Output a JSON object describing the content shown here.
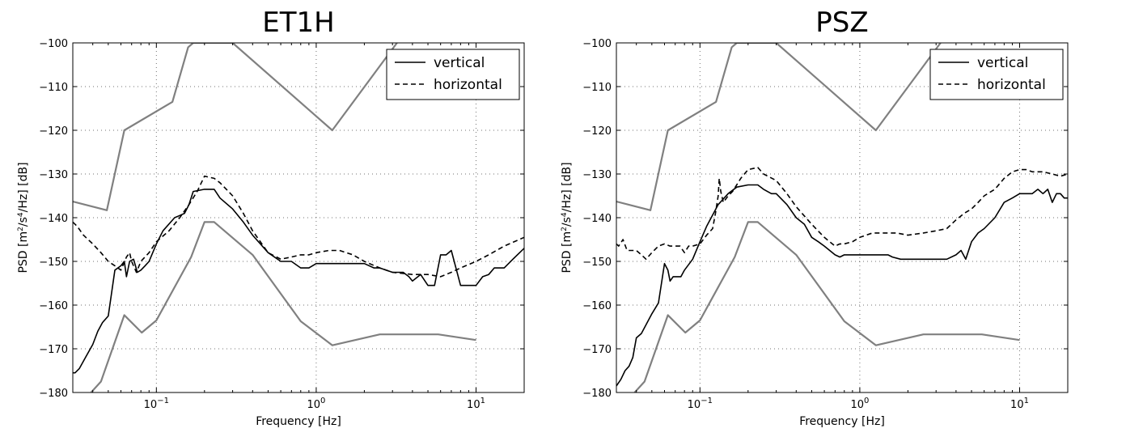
{
  "chart_data": [
    {
      "type": "line",
      "title": "ET1H",
      "xlabel": "Frequency [Hz]",
      "ylabel": "PSD [m$^2$/s$^4$/Hz] [dB]",
      "ylabel_parts": {
        "pre": "PSD [m",
        "sup1": "2",
        "mid": "/s",
        "sup2": "4",
        "post": "/Hz] [dB]"
      },
      "xscale": "log",
      "xlim": [
        0.03,
        20
      ],
      "ylim": [
        -180,
        -100
      ],
      "xticks": [
        {
          "value": 0.1,
          "base": "10",
          "exp": "−1"
        },
        {
          "value": 1,
          "base": "10",
          "exp": "0"
        },
        {
          "value": 10,
          "base": "10",
          "exp": "1"
        }
      ],
      "yticks": [
        -180,
        -170,
        -160,
        -150,
        -140,
        -130,
        -120,
        -110,
        -100
      ],
      "ytick_labels": [
        "−180",
        "−170",
        "−160",
        "−150",
        "−140",
        "−130",
        "−120",
        "−110",
        "−100"
      ],
      "grid": true,
      "legend": {
        "position": "top-right",
        "entries": [
          {
            "label": "vertical",
            "style": "solid"
          },
          {
            "label": "horizontal",
            "style": "dashed"
          }
        ]
      },
      "series": [
        {
          "name": "vertical",
          "color": "#000000",
          "style": "solid",
          "x": [
            0.03,
            0.031,
            0.033,
            0.036,
            0.04,
            0.043,
            0.046,
            0.05,
            0.055,
            0.06,
            0.063,
            0.065,
            0.068,
            0.072,
            0.076,
            0.08,
            0.085,
            0.09,
            0.1,
            0.11,
            0.13,
            0.14,
            0.15,
            0.16,
            0.17,
            0.2,
            0.23,
            0.25,
            0.3,
            0.35,
            0.4,
            0.5,
            0.6,
            0.7,
            0.8,
            0.9,
            1.0,
            1.5,
            2.0,
            2.3,
            2.5,
            3.0,
            3.5,
            3.8,
            4.0,
            4.5,
            5.0,
            5.5,
            6.0,
            6.5,
            7.0,
            8.0,
            9.0,
            10.0,
            11.0,
            12.0,
            13.0,
            15.0,
            17.0,
            20.0
          ],
          "y": [
            -175.5,
            -175.5,
            -174.5,
            -172,
            -169,
            -166,
            -164,
            -162.5,
            -152,
            -151,
            -150,
            -153.5,
            -150,
            -149.5,
            -152.5,
            -152,
            -151,
            -150,
            -146,
            -143,
            -140,
            -139.5,
            -139,
            -137,
            -134,
            -133.5,
            -133.5,
            -135.5,
            -138,
            -141,
            -144,
            -148,
            -150,
            -150,
            -151.5,
            -151.5,
            -150.5,
            -150.5,
            -150.5,
            -151.5,
            -151.5,
            -152.5,
            -152.5,
            -153.5,
            -154.5,
            -153,
            -155.5,
            -155.5,
            -148.5,
            -148.5,
            -147.5,
            -155.5,
            -155.5,
            -155.5,
            -153.5,
            -153,
            -151.5,
            -151.5,
            -149.5,
            -147
          ]
        },
        {
          "name": "horizontal",
          "color": "#000000",
          "style": "dashed",
          "x": [
            0.03,
            0.032,
            0.035,
            0.04,
            0.045,
            0.05,
            0.055,
            0.06,
            0.065,
            0.068,
            0.07,
            0.075,
            0.08,
            0.09,
            0.1,
            0.12,
            0.14,
            0.16,
            0.18,
            0.2,
            0.23,
            0.25,
            0.3,
            0.35,
            0.4,
            0.5,
            0.6,
            0.7,
            0.8,
            0.9,
            1.0,
            1.2,
            1.4,
            1.7,
            2.0,
            2.5,
            3.0,
            4.0,
            5.0,
            6.0,
            7.0,
            8.0,
            10.0,
            12.0,
            15.0,
            20.0
          ],
          "y": [
            -141,
            -142,
            -144,
            -146,
            -148,
            -150,
            -151,
            -152,
            -149,
            -148,
            -150,
            -152.5,
            -150,
            -148,
            -145.5,
            -143,
            -140,
            -137,
            -134,
            -130.5,
            -131,
            -132,
            -135,
            -139,
            -143,
            -148,
            -149.5,
            -149,
            -148.5,
            -148.5,
            -148,
            -147.5,
            -147.5,
            -148.5,
            -150,
            -151.5,
            -152.5,
            -153,
            -153,
            -153.5,
            -152.5,
            -151.5,
            -150,
            -148.5,
            -146.5,
            -144.5
          ]
        },
        {
          "name": "",
          "color": "#808080",
          "style": "solid",
          "role": "upper-noise-model",
          "x": [
            0.03,
            0.049,
            0.063,
            0.126,
            0.158,
            0.17,
            0.3,
            1.26,
            3.2
          ],
          "y": [
            -136.3,
            -138.3,
            -120,
            -113.5,
            -101,
            -100,
            -100,
            -120,
            -100
          ]
        },
        {
          "name": "",
          "color": "#808080",
          "style": "solid",
          "role": "lower-noise-model",
          "x": [
            0.039,
            0.045,
            0.063,
            0.081,
            0.1,
            0.165,
            0.2,
            0.23,
            0.4,
            0.8,
            1.26,
            2.5,
            5.8,
            10.0
          ],
          "y": [
            -180,
            -177.5,
            -162.3,
            -166.3,
            -163.5,
            -149,
            -141,
            -141,
            -148.5,
            -163.7,
            -169.2,
            -166.7,
            -166.7,
            -168
          ]
        }
      ]
    },
    {
      "type": "line",
      "title": "PSZ",
      "xlabel": "Frequency [Hz]",
      "ylabel": "PSD [m$^2$/s$^4$/Hz] [dB]",
      "ylabel_parts": {
        "pre": "PSD [m",
        "sup1": "2",
        "mid": "/s",
        "sup2": "4",
        "post": "/Hz] [dB]"
      },
      "xscale": "log",
      "xlim": [
        0.03,
        20
      ],
      "ylim": [
        -180,
        -100
      ],
      "xticks": [
        {
          "value": 0.1,
          "base": "10",
          "exp": "−1"
        },
        {
          "value": 1,
          "base": "10",
          "exp": "0"
        },
        {
          "value": 10,
          "base": "10",
          "exp": "1"
        }
      ],
      "yticks": [
        -180,
        -170,
        -160,
        -150,
        -140,
        -130,
        -120,
        -110,
        -100
      ],
      "ytick_labels": [
        "−180",
        "−170",
        "−160",
        "−150",
        "−140",
        "−130",
        "−120",
        "−110",
        "−100"
      ],
      "grid": true,
      "legend": {
        "position": "top-right",
        "entries": [
          {
            "label": "vertical",
            "style": "solid"
          },
          {
            "label": "horizontal",
            "style": "dashed"
          }
        ]
      },
      "series": [
        {
          "name": "vertical",
          "color": "#000000",
          "style": "solid",
          "x": [
            0.03,
            0.032,
            0.034,
            0.036,
            0.038,
            0.04,
            0.043,
            0.046,
            0.05,
            0.055,
            0.06,
            0.063,
            0.065,
            0.068,
            0.072,
            0.076,
            0.08,
            0.09,
            0.1,
            0.11,
            0.13,
            0.15,
            0.17,
            0.2,
            0.23,
            0.25,
            0.28,
            0.3,
            0.35,
            0.4,
            0.45,
            0.5,
            0.55,
            0.6,
            0.7,
            0.75,
            0.8,
            1.0,
            1.5,
            1.6,
            1.8,
            2.0,
            3.0,
            3.5,
            4.0,
            4.3,
            4.6,
            5.0,
            5.5,
            6.0,
            7.0,
            8.0,
            9.0,
            10.0,
            11.0,
            12.0,
            13.0,
            14.0,
            15.0,
            16.0,
            17.0,
            18.0,
            19.0,
            20.0
          ],
          "y": [
            -178.5,
            -177,
            -175,
            -174,
            -172,
            -167.5,
            -166.5,
            -164.5,
            -162,
            -159.5,
            -150.5,
            -152,
            -154.5,
            -153.5,
            -153.5,
            -153.5,
            -152,
            -149.5,
            -145.5,
            -142,
            -137,
            -134.5,
            -133,
            -132.5,
            -132.5,
            -133.5,
            -134.5,
            -134.5,
            -137,
            -140,
            -141.5,
            -144.5,
            -145.5,
            -146.5,
            -148.5,
            -149,
            -148.5,
            -148.5,
            -148.5,
            -149,
            -149.5,
            -149.5,
            -149.5,
            -149.5,
            -148.5,
            -147.5,
            -149.5,
            -145.5,
            -143.5,
            -142.5,
            -140,
            -136.5,
            -135.5,
            -134.5,
            -134.5,
            -134.5,
            -133.5,
            -134.5,
            -133.5,
            -136.5,
            -134.5,
            -134.5,
            -135.5,
            -135.5
          ]
        },
        {
          "name": "horizontal",
          "color": "#000000",
          "style": "dashed",
          "x": [
            0.03,
            0.031,
            0.033,
            0.035,
            0.038,
            0.04,
            0.043,
            0.046,
            0.05,
            0.055,
            0.06,
            0.065,
            0.07,
            0.075,
            0.08,
            0.085,
            0.09,
            0.1,
            0.11,
            0.12,
            0.125,
            0.13,
            0.132,
            0.135,
            0.14,
            0.15,
            0.16,
            0.18,
            0.2,
            0.23,
            0.25,
            0.3,
            0.35,
            0.4,
            0.5,
            0.6,
            0.7,
            0.75,
            0.8,
            0.9,
            1.0,
            1.2,
            1.5,
            1.7,
            2.0,
            2.5,
            3.0,
            3.5,
            4.0,
            4.5,
            5.0,
            5.5,
            6.0,
            7.0,
            8.0,
            9.0,
            10.0,
            11.0,
            12.0,
            14.0,
            16.0,
            18.0,
            20.0
          ],
          "y": [
            -146,
            -146.5,
            -145,
            -147.5,
            -147.5,
            -147.5,
            -148.5,
            -149.5,
            -148,
            -146.5,
            -146,
            -146.5,
            -146.5,
            -146.5,
            -148,
            -146.5,
            -146.5,
            -146,
            -144,
            -142.5,
            -139,
            -135,
            -131,
            -134,
            -136.5,
            -135,
            -134,
            -131,
            -129,
            -128.5,
            -130,
            -131.5,
            -134.5,
            -137.5,
            -141.5,
            -144.5,
            -146.5,
            -146,
            -146,
            -145.5,
            -144.5,
            -143.5,
            -143.5,
            -143.5,
            -144,
            -143.5,
            -143,
            -142.5,
            -140.5,
            -139,
            -138,
            -136.5,
            -135,
            -133.5,
            -131,
            -129.5,
            -129,
            -129,
            -129.5,
            -129.5,
            -130,
            -130.5,
            -130
          ]
        },
        {
          "name": "",
          "color": "#808080",
          "style": "solid",
          "role": "upper-noise-model",
          "x": [
            0.03,
            0.049,
            0.063,
            0.126,
            0.158,
            0.17,
            0.3,
            1.26,
            3.2
          ],
          "y": [
            -136.3,
            -138.3,
            -120,
            -113.5,
            -101,
            -100,
            -100,
            -120,
            -100
          ]
        },
        {
          "name": "",
          "color": "#808080",
          "style": "solid",
          "role": "lower-noise-model",
          "x": [
            0.039,
            0.045,
            0.063,
            0.081,
            0.1,
            0.165,
            0.2,
            0.23,
            0.4,
            0.8,
            1.26,
            2.5,
            5.8,
            10.0
          ],
          "y": [
            -180,
            -177.5,
            -162.3,
            -166.3,
            -163.5,
            -149,
            -141,
            -141,
            -148.5,
            -163.7,
            -169.2,
            -166.7,
            -166.7,
            -168
          ]
        }
      ]
    }
  ]
}
